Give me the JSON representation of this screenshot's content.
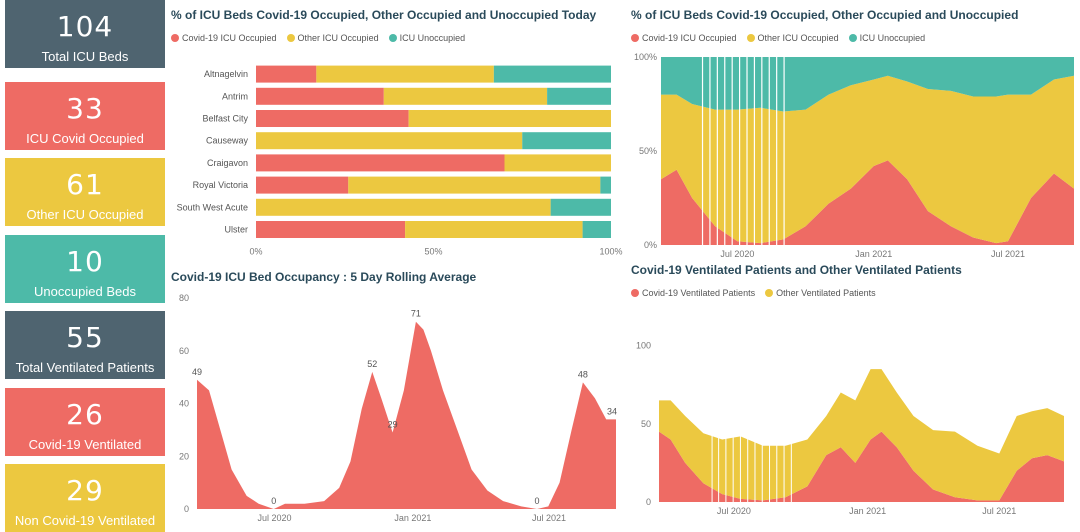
{
  "colors": {
    "covid": "#ee6b64",
    "other": "#ecc840",
    "unoccupied": "#4dbaa8",
    "dark": "#4f6470"
  },
  "kpis": [
    {
      "value": "104",
      "label": "Total ICU Beds",
      "color": "#4f6470"
    },
    {
      "value": "33",
      "label": "ICU Covid Occupied",
      "color": "#ee6b64"
    },
    {
      "value": "61",
      "label": "Other ICU Occupied",
      "color": "#ecc840"
    },
    {
      "value": "10",
      "label": "Unoccupied Beds",
      "color": "#4dbaa8"
    },
    {
      "value": "55",
      "label": "Total Ventilated Patients",
      "color": "#4f6470"
    },
    {
      "value": "26",
      "label": "Covid-19 Ventilated",
      "color": "#ee6b64"
    },
    {
      "value": "29",
      "label": "Non Covid-19 Ventilated",
      "color": "#ecc840"
    }
  ],
  "legend_icu": [
    "Covid-19 ICU Occupied",
    "Other ICU Occupied",
    "ICU Unoccupied"
  ],
  "legend_vent": [
    "Covid-19 Ventilated Patients",
    "Other Ventilated Patients"
  ],
  "chart_data": [
    {
      "type": "bar",
      "title": "% of ICU Beds Covid-19 Occupied, Other Occupied and Unoccupied Today",
      "categories": [
        "Altnagelvin",
        "Antrim",
        "Belfast City",
        "Causeway",
        "Craigavon",
        "Royal Victoria",
        "South West Acute",
        "Ulster"
      ],
      "series": [
        {
          "name": "Covid-19 ICU Occupied",
          "values": [
            17,
            36,
            43,
            0,
            70,
            26,
            0,
            42
          ]
        },
        {
          "name": "Other ICU Occupied",
          "values": [
            50,
            46,
            57,
            75,
            30,
            71,
            83,
            50
          ]
        },
        {
          "name": "ICU Unoccupied",
          "values": [
            33,
            18,
            0,
            25,
            0,
            3,
            17,
            8
          ]
        }
      ],
      "xlim": [
        0,
        100
      ],
      "xticks": [
        "0%",
        "50%",
        "100%"
      ],
      "stacked": true
    },
    {
      "type": "area",
      "title": "% of ICU Beds Covid-19 Occupied, Other Occupied and Unoccupied",
      "stacked": true,
      "x": [
        "2020-03-20",
        "2020-04-10",
        "2020-05-01",
        "2020-06-01",
        "2020-07-01",
        "2020-08-01",
        "2020-09-01",
        "2020-10-01",
        "2020-11-01",
        "2020-12-01",
        "2021-01-01",
        "2021-01-20",
        "2021-02-15",
        "2021-03-15",
        "2021-04-15",
        "2021-05-15",
        "2021-06-15",
        "2021-07-01",
        "2021-08-01",
        "2021-09-01",
        "2021-09-28"
      ],
      "series": [
        {
          "name": "Covid-19 ICU Occupied",
          "values": [
            35,
            40,
            25,
            10,
            2,
            1,
            3,
            10,
            22,
            30,
            42,
            45,
            35,
            18,
            10,
            4,
            1,
            2,
            25,
            38,
            30
          ]
        },
        {
          "name": "Other ICU Occupied",
          "values": [
            45,
            40,
            50,
            62,
            70,
            72,
            68,
            62,
            58,
            55,
            46,
            45,
            52,
            65,
            72,
            75,
            78,
            78,
            55,
            50,
            60
          ]
        },
        {
          "name": "ICU Unoccupied",
          "values": [
            20,
            20,
            25,
            28,
            28,
            27,
            29,
            28,
            20,
            15,
            12,
            10,
            13,
            17,
            18,
            21,
            21,
            20,
            20,
            12,
            10
          ]
        }
      ],
      "xticks": [
        "Jul 2020",
        "Jan 2021",
        "Jul 2021"
      ],
      "yticks": [
        "0%",
        "50%",
        "100%"
      ],
      "ylim": [
        0,
        100
      ]
    },
    {
      "type": "area",
      "title": "Covid-19 ICU Bed Occupancy : 5 Day Rolling Average",
      "x": [
        "2020-03-20",
        "2020-04-05",
        "2020-04-20",
        "2020-05-05",
        "2020-05-25",
        "2020-06-10",
        "2020-06-30",
        "2020-07-15",
        "2020-08-10",
        "2020-09-05",
        "2020-09-25",
        "2020-10-10",
        "2020-10-25",
        "2020-11-08",
        "2020-11-20",
        "2020-12-05",
        "2020-12-20",
        "2021-01-05",
        "2021-01-15",
        "2021-01-25",
        "2021-02-10",
        "2021-03-01",
        "2021-03-20",
        "2021-04-10",
        "2021-05-01",
        "2021-05-25",
        "2021-06-15",
        "2021-06-30",
        "2021-07-15",
        "2021-07-31",
        "2021-08-15",
        "2021-08-31",
        "2021-09-15",
        "2021-09-28"
      ],
      "values": [
        49,
        45,
        30,
        15,
        5,
        2,
        0,
        2,
        2,
        3,
        8,
        18,
        38,
        52,
        42,
        29,
        45,
        71,
        68,
        60,
        45,
        30,
        15,
        7,
        3,
        1,
        0,
        1,
        10,
        30,
        48,
        42,
        34,
        34
      ],
      "labels": [
        "49",
        "0",
        "52",
        "29",
        "71",
        "0",
        "48",
        "34"
      ],
      "xticks": [
        "Jul 2020",
        "Jan 2021",
        "Jul 2021"
      ],
      "yticks": [
        0,
        20,
        40,
        60,
        80
      ],
      "ylim": [
        0,
        80
      ]
    },
    {
      "type": "area",
      "title": "Covid-19 Ventilated Patients and Other Ventilated Patients",
      "stacked": true,
      "x": [
        "2020-03-20",
        "2020-04-05",
        "2020-04-25",
        "2020-05-20",
        "2020-06-15",
        "2020-07-10",
        "2020-08-10",
        "2020-09-10",
        "2020-10-10",
        "2020-11-05",
        "2020-11-25",
        "2020-12-15",
        "2021-01-05",
        "2021-01-20",
        "2021-02-10",
        "2021-03-05",
        "2021-04-01",
        "2021-05-01",
        "2021-06-01",
        "2021-07-01",
        "2021-07-25",
        "2021-08-15",
        "2021-09-05",
        "2021-09-28"
      ],
      "series": [
        {
          "name": "Covid-19 Ventilated Patients",
          "values": [
            45,
            40,
            25,
            12,
            5,
            2,
            1,
            3,
            10,
            30,
            35,
            25,
            40,
            45,
            35,
            20,
            8,
            3,
            1,
            1,
            20,
            28,
            30,
            26
          ]
        },
        {
          "name": "Other Ventilated Patients",
          "values": [
            20,
            25,
            30,
            32,
            35,
            40,
            35,
            33,
            30,
            25,
            35,
            40,
            45,
            40,
            35,
            35,
            38,
            42,
            35,
            30,
            35,
            30,
            30,
            29
          ]
        }
      ],
      "xticks": [
        "Jul 2020",
        "Jan 2021",
        "Jul 2021"
      ],
      "yticks": [
        0,
        50,
        100
      ],
      "ylim": [
        0,
        110
      ]
    }
  ]
}
